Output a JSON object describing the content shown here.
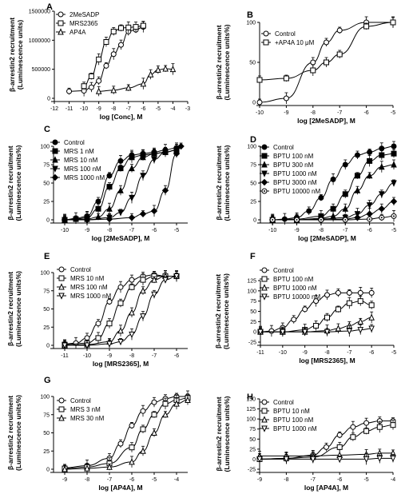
{
  "chart_data": [
    {
      "panel": "A",
      "type": "line",
      "xlabel": "log [Conc], M",
      "ylabel": [
        "β-arrestin2 recruitment",
        "(Luminescence units)"
      ],
      "xlim": [
        -12,
        -3
      ],
      "ylim": [
        0,
        1500000
      ],
      "xticks": [
        -12,
        -11,
        -10,
        -9,
        -8,
        -7,
        -6,
        -5,
        -4,
        -3
      ],
      "yticks": [
        0,
        500000,
        1000000,
        1500000
      ],
      "series": [
        {
          "name": "2MeSADP",
          "marker": "circle",
          "x": [
            -11,
            -10,
            -9.5,
            -9,
            -8.5,
            -8,
            -7.5,
            -7,
            -6.5,
            -6
          ],
          "y": [
            120000,
            130000,
            190000,
            300000,
            560000,
            760000,
            920000,
            1150000,
            1180000,
            1230000
          ]
        },
        {
          "name": "MRS2365",
          "marker": "square",
          "x": [
            -10,
            -9.5,
            -9,
            -8.5,
            -8,
            -7.5,
            -7,
            -6.5,
            -6
          ],
          "y": [
            210000,
            380000,
            670000,
            970000,
            1150000,
            1210000,
            1220000,
            1230000,
            1250000
          ]
        },
        {
          "name": "AP4A",
          "marker": "triangle",
          "x": [
            -9,
            -8,
            -7,
            -6,
            -5.5,
            -5,
            -4.5,
            -4
          ],
          "y": [
            120000,
            140000,
            180000,
            250000,
            410000,
            490000,
            510000,
            500000
          ]
        }
      ]
    },
    {
      "panel": "B",
      "type": "line",
      "xlabel": "log [2MeSADP], M",
      "ylabel": [
        "β-arrestin2 recruitment",
        "(Luminescence units%)"
      ],
      "xlim": [
        -10,
        -5
      ],
      "ylim": [
        0,
        100
      ],
      "xticks": [
        -10,
        -9,
        -8,
        -7,
        -6,
        -5
      ],
      "yticks": [
        0,
        50,
        100
      ],
      "series": [
        {
          "name": "Control",
          "marker": "circle",
          "x": [
            -10,
            -9,
            -8,
            -7.5,
            -7,
            -6,
            -5
          ],
          "y": [
            0,
            5,
            50,
            75,
            90,
            100,
            100
          ]
        },
        {
          "name": "+AP4A 10 μM",
          "marker": "square",
          "x": [
            -10,
            -9,
            -8,
            -7.5,
            -7,
            -6,
            -5
          ],
          "y": [
            28,
            30,
            40,
            50,
            60,
            95,
            100
          ]
        }
      ]
    },
    {
      "panel": "C",
      "type": "line",
      "xlabel": "log [2MeSADP], M",
      "ylabel": [
        "β-arrestin2 recruitment",
        "(Luminescence units%)"
      ],
      "xlim": [
        -10.5,
        -4.5
      ],
      "ylim": [
        0,
        100
      ],
      "xticks": [
        -10,
        -9,
        -8,
        -7,
        -6,
        -5
      ],
      "yticks": [
        0,
        25,
        50,
        75,
        100
      ],
      "series": [
        {
          "name": "Control",
          "marker": "circle",
          "x": [
            -10,
            -9.5,
            -9,
            -8.5,
            -8,
            -7.5,
            -7,
            -6.5,
            -6,
            -5.5,
            -5
          ],
          "y": [
            0,
            2,
            5,
            25,
            60,
            80,
            88,
            90,
            92,
            95,
            98
          ]
        },
        {
          "name": "MRS 1 nM",
          "marker": "square",
          "x": [
            -10,
            -9.5,
            -9,
            -8.5,
            -8,
            -7.5,
            -7,
            -6.5,
            -6,
            -5.5,
            -5
          ],
          "y": [
            0,
            1,
            3,
            15,
            45,
            70,
            85,
            88,
            90,
            92,
            95
          ]
        },
        {
          "name": "MRS 10 nM",
          "marker": "triangle",
          "x": [
            -10,
            -9,
            -8.5,
            -8,
            -7.5,
            -7,
            -6.5,
            -6,
            -5.5,
            -5
          ],
          "y": [
            0,
            1,
            4,
            15,
            40,
            70,
            85,
            90,
            92,
            95
          ]
        },
        {
          "name": "MRS 100 nM",
          "marker": "triangle-down",
          "x": [
            -10,
            -9,
            -8,
            -7.5,
            -7,
            -6.5,
            -6,
            -5.5,
            -5
          ],
          "y": [
            0,
            0,
            3,
            10,
            30,
            60,
            82,
            92,
            95
          ]
        },
        {
          "name": "MRS 1000 nM",
          "marker": "diamond",
          "x": [
            -10,
            -9,
            -8,
            -7,
            -6.5,
            -6,
            -5.5,
            -5,
            -4.8
          ],
          "y": [
            0,
            0,
            1,
            3,
            8,
            12,
            40,
            90,
            100
          ]
        }
      ]
    },
    {
      "panel": "D",
      "type": "line",
      "xlabel": "log [2MeSADP], M",
      "ylabel": [
        "β-arrestin2 recruitment",
        "(Luminescence units%)"
      ],
      "xlim": [
        -10.5,
        -5
      ],
      "ylim": [
        0,
        100
      ],
      "xticks": [
        -10,
        -9,
        -8,
        -7,
        -6,
        -5
      ],
      "yticks": [
        0,
        25,
        50,
        75,
        100
      ],
      "series": [
        {
          "name": "Control",
          "marker": "circle",
          "x": [
            -10,
            -9.5,
            -9,
            -8.5,
            -8,
            -7.5,
            -7,
            -6.5,
            -6,
            -5.5,
            -5
          ],
          "y": [
            0,
            1,
            3,
            12,
            30,
            55,
            75,
            88,
            92,
            97,
            100
          ]
        },
        {
          "name": "BPTU 100 nM",
          "marker": "square",
          "x": [
            -10,
            -9,
            -8,
            -7.5,
            -7,
            -6.5,
            -6,
            -5.5,
            -5
          ],
          "y": [
            0,
            1,
            5,
            15,
            35,
            60,
            80,
            88,
            90
          ]
        },
        {
          "name": "BPTU 300 nM",
          "marker": "triangle",
          "x": [
            -10,
            -9,
            -8,
            -7.5,
            -7,
            -6.5,
            -6,
            -5.5,
            -5
          ],
          "y": [
            0,
            0,
            2,
            5,
            15,
            40,
            60,
            72,
            75
          ]
        },
        {
          "name": "BPTU 1000 nM",
          "marker": "triangle-down",
          "x": [
            -10,
            -9,
            -8,
            -7,
            -6.5,
            -6,
            -5.5,
            -5
          ],
          "y": [
            0,
            0,
            1,
            3,
            8,
            20,
            35,
            50
          ]
        },
        {
          "name": "BPTU 3000 nM",
          "marker": "diamond",
          "x": [
            -10,
            -9,
            -8,
            -7,
            -6.5,
            -6,
            -5.5,
            -5
          ],
          "y": [
            0,
            0,
            0,
            1,
            3,
            8,
            15,
            25
          ]
        },
        {
          "name": "BPTU 10000 nM",
          "marker": "circle-dot",
          "x": [
            -10,
            -9,
            -8,
            -7,
            -6,
            -5.5,
            -5
          ],
          "y": [
            0,
            0,
            0,
            0,
            1,
            3,
            5
          ]
        }
      ]
    },
    {
      "panel": "E",
      "type": "line",
      "xlabel": "log [MRS2365], M",
      "ylabel": [
        "β-arrestin2 recruitment",
        "(Luminescence units%)"
      ],
      "xlim": [
        -11.5,
        -5.5
      ],
      "ylim": [
        0,
        100
      ],
      "xticks": [
        -11,
        -10,
        -9,
        -8,
        -7,
        -6
      ],
      "yticks": [
        0,
        25,
        50,
        75,
        100
      ],
      "series": [
        {
          "name": "Control",
          "marker": "circle",
          "x": [
            -11,
            -10.5,
            -10,
            -9.5,
            -9,
            -8.5,
            -8,
            -7.5,
            -7,
            -6.5,
            -6
          ],
          "y": [
            2,
            3,
            10,
            30,
            60,
            80,
            90,
            95,
            97,
            95,
            95
          ]
        },
        {
          "name": "MRS 10 nM",
          "marker": "square",
          "x": [
            -11,
            -10,
            -9.5,
            -9,
            -8.5,
            -8,
            -7.5,
            -7,
            -6.5,
            -6
          ],
          "y": [
            1,
            3,
            10,
            30,
            58,
            80,
            90,
            95,
            95,
            95
          ]
        },
        {
          "name": "MRS 100 nM",
          "marker": "triangle",
          "x": [
            -11,
            -10,
            -9,
            -8.5,
            -8,
            -7.5,
            -7,
            -6.5,
            -6
          ],
          "y": [
            0,
            1,
            5,
            20,
            45,
            75,
            90,
            95,
            95
          ]
        },
        {
          "name": "MRS 1000 nM",
          "marker": "triangle-down",
          "x": [
            -11,
            -10,
            -9,
            -8.5,
            -8,
            -7.5,
            -7,
            -6.5,
            -6
          ],
          "y": [
            0,
            0,
            2,
            5,
            15,
            40,
            70,
            90,
            95
          ]
        }
      ]
    },
    {
      "panel": "F",
      "type": "line",
      "xlabel": "log [MRS2365], M",
      "ylabel": [
        "β-arrestin2 recruitment",
        "(Luminescence units%)"
      ],
      "xlim": [
        -11,
        -5
      ],
      "ylim": [
        -25,
        125
      ],
      "xticks": [
        -11,
        -10,
        -9,
        -8,
        -7,
        -6,
        -5
      ],
      "yticks": [
        -25,
        0,
        25,
        50,
        75,
        100,
        125
      ],
      "series": [
        {
          "name": "Control",
          "marker": "circle",
          "x": [
            -11,
            -10.5,
            -10,
            -9.5,
            -9,
            -8.5,
            -8,
            -7.5,
            -7,
            -6.5,
            -6
          ],
          "y": [
            0,
            2,
            10,
            30,
            55,
            75,
            90,
            95,
            95,
            95,
            95
          ]
        },
        {
          "name": "BPTU 100 nM",
          "marker": "square",
          "x": [
            -11,
            -10,
            -9,
            -8.5,
            -8,
            -7.5,
            -7,
            -6.5,
            -6
          ],
          "y": [
            0,
            0,
            5,
            15,
            35,
            55,
            70,
            75,
            65
          ]
        },
        {
          "name": "BPTU 1000 nM",
          "marker": "triangle",
          "x": [
            -11,
            -10,
            -9,
            -8,
            -7.5,
            -7,
            -6.5,
            -6
          ],
          "y": [
            0,
            0,
            0,
            3,
            8,
            15,
            25,
            35
          ]
        },
        {
          "name": "BPTU 10000 nM",
          "marker": "triangle-down",
          "x": [
            -11,
            -10,
            -9,
            -8,
            -7,
            -6.5,
            -6
          ],
          "y": [
            0,
            0,
            0,
            0,
            2,
            5,
            8
          ]
        }
      ]
    },
    {
      "panel": "G",
      "type": "line",
      "xlabel": "log [AP4A], M",
      "ylabel": [
        "β-arrestin2 recruitment",
        "(Luminescence units%)"
      ],
      "xlim": [
        -9.5,
        -3.5
      ],
      "ylim": [
        0,
        100
      ],
      "xticks": [
        -9,
        -8,
        -7,
        -6,
        -5,
        -4
      ],
      "yticks": [
        0,
        25,
        50,
        75,
        100
      ],
      "series": [
        {
          "name": "Control",
          "marker": "circle",
          "x": [
            -9,
            -8,
            -7,
            -6.5,
            -6,
            -5.5,
            -5,
            -4.5,
            -4,
            -3.5
          ],
          "y": [
            2,
            5,
            15,
            35,
            60,
            80,
            92,
            97,
            100,
            100
          ]
        },
        {
          "name": "MRS 3 nM",
          "marker": "square",
          "x": [
            -9,
            -8,
            -7,
            -6,
            -5.5,
            -5,
            -4.5,
            -4,
            -3.5
          ],
          "y": [
            1,
            3,
            8,
            30,
            55,
            75,
            90,
            95,
            98
          ]
        },
        {
          "name": "MRS 30 nM",
          "marker": "triangle",
          "x": [
            -9,
            -8,
            -7,
            -6,
            -5.5,
            -5,
            -4.5,
            -4,
            -3.5
          ],
          "y": [
            0,
            1,
            3,
            10,
            25,
            50,
            75,
            90,
            95
          ]
        }
      ]
    },
    {
      "panel": "H",
      "type": "line",
      "xlabel": "log [AP4A], M",
      "ylabel": [
        "β-arrestin2 recruitment",
        "(Luminescence units%)"
      ],
      "xlim": [
        -9,
        -4
      ],
      "ylim": [
        -25,
        150
      ],
      "xticks": [
        -9,
        -8,
        -7,
        -6,
        -5,
        -4
      ],
      "yticks": [
        -25,
        0,
        25,
        50,
        75,
        100,
        125,
        150
      ],
      "series": [
        {
          "name": "Control",
          "marker": "circle",
          "x": [
            -9,
            -8,
            -7,
            -6.5,
            -6,
            -5.5,
            -5,
            -4.5,
            -4
          ],
          "y": [
            0,
            2,
            10,
            30,
            60,
            80,
            90,
            95,
            95
          ]
        },
        {
          "name": "BPTU 10 nM",
          "marker": "square",
          "x": [
            -9,
            -8,
            -7,
            -6,
            -5.5,
            -5,
            -4.5,
            -4
          ],
          "y": [
            0,
            2,
            5,
            30,
            55,
            70,
            80,
            85
          ]
        },
        {
          "name": "BPTU 100 nM",
          "marker": "triangle",
          "x": [
            -9,
            -8,
            -7,
            -6,
            -5,
            -4.5,
            -4
          ],
          "y": [
            8,
            8,
            8,
            10,
            12,
            15,
            15
          ]
        },
        {
          "name": "BPTU 1000 nM",
          "marker": "triangle-down",
          "x": [
            -9,
            -8,
            -7,
            -6,
            -5,
            -4.5,
            -4
          ],
          "y": [
            0,
            0,
            0,
            0,
            0,
            2,
            2
          ]
        }
      ]
    }
  ]
}
